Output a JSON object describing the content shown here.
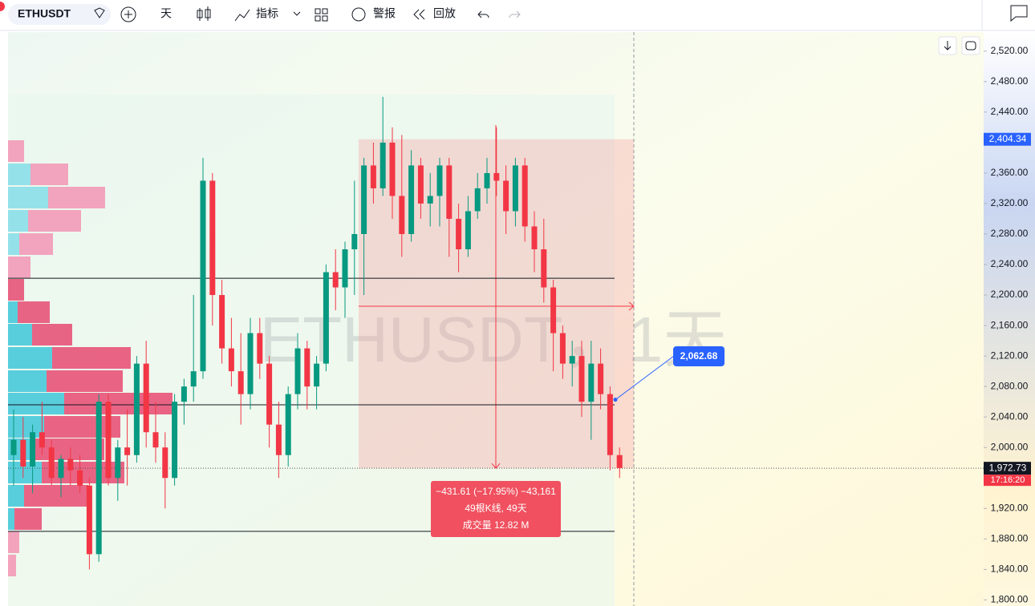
{
  "toolbar": {
    "symbol": "ETHUSDT",
    "interval": "天",
    "indicators": "指标",
    "alerts": "警报",
    "replay": "回放"
  },
  "chart_data": {
    "type": "candlestick",
    "watermark": "ETHUSDT，1天",
    "up_color": "#089981",
    "down_color": "#f23645",
    "candles": [
      [
        1990,
        2050,
        1950,
        2010
      ],
      [
        2010,
        2040,
        1960,
        1975
      ],
      [
        1975,
        2030,
        1940,
        2020
      ],
      [
        2020,
        2060,
        1990,
        2000
      ],
      [
        2000,
        2010,
        1950,
        1960
      ],
      [
        1960,
        1990,
        1935,
        1985
      ],
      [
        1985,
        2000,
        1950,
        1970
      ],
      [
        1970,
        1990,
        1940,
        1950
      ],
      [
        1950,
        1960,
        1840,
        1860
      ],
      [
        1860,
        2070,
        1850,
        2060
      ],
      [
        2060,
        2070,
        1950,
        1960
      ],
      [
        1960,
        2010,
        1930,
        2000
      ],
      [
        2000,
        2050,
        1950,
        1990
      ],
      [
        1990,
        2120,
        1980,
        2110
      ],
      [
        2110,
        2140,
        2000,
        2020
      ],
      [
        2020,
        2060,
        1980,
        2000
      ],
      [
        2000,
        2020,
        1920,
        1960
      ],
      [
        1960,
        2070,
        1950,
        2060
      ],
      [
        2060,
        2090,
        2030,
        2080
      ],
      [
        2080,
        2200,
        2060,
        2100
      ],
      [
        2100,
        2380,
        2090,
        2350
      ],
      [
        2350,
        2360,
        2160,
        2200
      ],
      [
        2200,
        2220,
        2110,
        2130
      ],
      [
        2130,
        2170,
        2080,
        2100
      ],
      [
        2100,
        2150,
        2030,
        2070
      ],
      [
        2070,
        2170,
        2050,
        2150
      ],
      [
        2150,
        2170,
        2090,
        2110
      ],
      [
        2110,
        2120,
        2000,
        2030
      ],
      [
        2030,
        2060,
        1960,
        1990
      ],
      [
        1990,
        2080,
        1975,
        2070
      ],
      [
        2070,
        2150,
        2050,
        2130
      ],
      [
        2130,
        2140,
        2050,
        2080
      ],
      [
        2080,
        2120,
        2050,
        2110
      ],
      [
        2110,
        2240,
        2100,
        2230
      ],
      [
        2230,
        2260,
        2180,
        2210
      ],
      [
        2210,
        2270,
        2170,
        2260
      ],
      [
        2260,
        2350,
        2200,
        2280
      ],
      [
        2280,
        2380,
        2200,
        2370
      ],
      [
        2370,
        2400,
        2320,
        2340
      ],
      [
        2340,
        2460,
        2330,
        2400
      ],
      [
        2400,
        2420,
        2300,
        2330
      ],
      [
        2330,
        2410,
        2250,
        2280
      ],
      [
        2280,
        2390,
        2270,
        2370
      ],
      [
        2370,
        2380,
        2300,
        2320
      ],
      [
        2320,
        2360,
        2290,
        2330
      ],
      [
        2330,
        2380,
        2290,
        2370
      ],
      [
        2370,
        2380,
        2250,
        2300
      ],
      [
        2300,
        2320,
        2230,
        2260
      ],
      [
        2260,
        2330,
        2250,
        2310
      ],
      [
        2310,
        2360,
        2300,
        2340
      ],
      [
        2340,
        2380,
        2320,
        2360
      ],
      [
        2360,
        2420,
        2330,
        2350
      ],
      [
        2350,
        2370,
        2280,
        2310
      ],
      [
        2310,
        2380,
        2290,
        2370
      ],
      [
        2370,
        2380,
        2270,
        2290
      ],
      [
        2290,
        2310,
        2230,
        2260
      ],
      [
        2260,
        2300,
        2190,
        2210
      ],
      [
        2210,
        2220,
        2100,
        2150
      ],
      [
        2150,
        2160,
        2090,
        2110
      ],
      [
        2110,
        2140,
        2080,
        2120
      ],
      [
        2120,
        2140,
        2040,
        2060
      ],
      [
        2060,
        2140,
        2010,
        2110
      ],
      [
        2110,
        2130,
        2050,
        2070
      ],
      [
        2070,
        2080,
        1970,
        1990
      ],
      [
        1990,
        2000,
        1960,
        1973
      ]
    ],
    "ylim": [
      1792,
      2545
    ],
    "yticks": [
      {
        "value": 1800,
        "label": "1,800.00"
      },
      {
        "value": 1840,
        "label": "1,840.00"
      },
      {
        "value": 1880,
        "label": "1,880.00"
      },
      {
        "value": 1920,
        "label": "1,920.00"
      },
      {
        "value": 2000,
        "label": "2,000.00"
      },
      {
        "value": 2040,
        "label": "2,040.00"
      },
      {
        "value": 2080,
        "label": "2,080.00"
      },
      {
        "value": 2120,
        "label": "2,120.00"
      },
      {
        "value": 2160,
        "label": "2,160.00"
      },
      {
        "value": 2200,
        "label": "2,200.00"
      },
      {
        "value": 2240,
        "label": "2,240.00"
      },
      {
        "value": 2280,
        "label": "2,280.00"
      },
      {
        "value": 2320,
        "label": "2,320.00"
      },
      {
        "value": 2360,
        "label": "2,360.00"
      },
      {
        "value": 2440,
        "label": "2,440.00"
      },
      {
        "value": 2480,
        "label": "2,480.00"
      },
      {
        "value": 2520,
        "label": "2,520.00"
      }
    ],
    "hlines": [
      2222,
      2056,
      1890
    ],
    "range_high": {
      "value": 2404.34,
      "label": "2,404.34"
    },
    "last_price": {
      "value": 1972.73,
      "label": "1,972.73"
    },
    "countdown": "17:16:20",
    "note": {
      "value": 2062.68,
      "label": "2,062.68"
    },
    "measure": {
      "change": "−431.61 (−17.95%) −43,161",
      "bars": "49根K线, 49天",
      "volume": "成交量 12.82 M"
    }
  }
}
